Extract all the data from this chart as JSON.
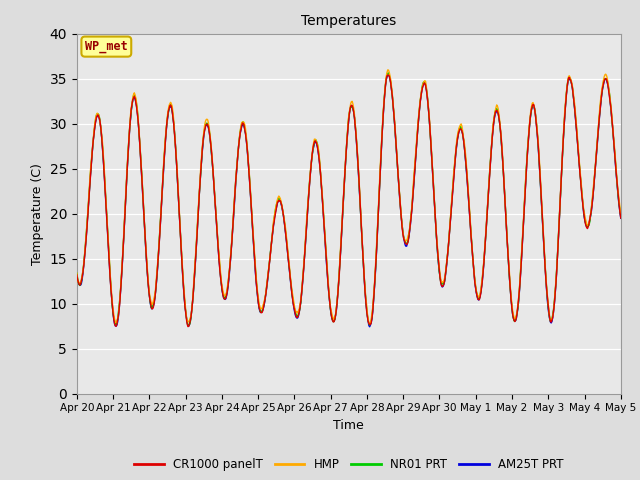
{
  "title": "Temperatures",
  "xlabel": "Time",
  "ylabel": "Temperature (C)",
  "ylim": [
    0,
    40
  ],
  "yticks": [
    0,
    5,
    10,
    15,
    20,
    25,
    30,
    35,
    40
  ],
  "xtick_labels": [
    "Apr 20",
    "Apr 21",
    "Apr 22",
    "Apr 23",
    "Apr 24",
    "Apr 25",
    "Apr 26",
    "Apr 27",
    "Apr 28",
    "Apr 29",
    "Apr 30",
    "May 1",
    "May 2",
    "May 3",
    "May 4",
    "May 5"
  ],
  "series_colors": {
    "CR1000 panelT": "#dd0000",
    "HMP": "#ffaa00",
    "NR01 PRT": "#00cc00",
    "AM25T PRT": "#0000dd"
  },
  "annotation_text": "WP_met",
  "annotation_box_color": "#ffff99",
  "annotation_box_edge": "#ccaa00",
  "annotation_text_color": "#990000",
  "background_color": "#e8e8e8",
  "line_width": 1.0,
  "day_peaks": [
    31,
    33,
    32,
    30,
    30,
    21.5,
    28,
    32,
    35.5,
    34.5,
    29.5,
    31.5,
    32,
    35,
    35
  ],
  "day_troughs": [
    12,
    7.5,
    9.5,
    7.5,
    10.5,
    9,
    8.5,
    8,
    7.5,
    16.5,
    12,
    10.5,
    8,
    8,
    18.5
  ]
}
